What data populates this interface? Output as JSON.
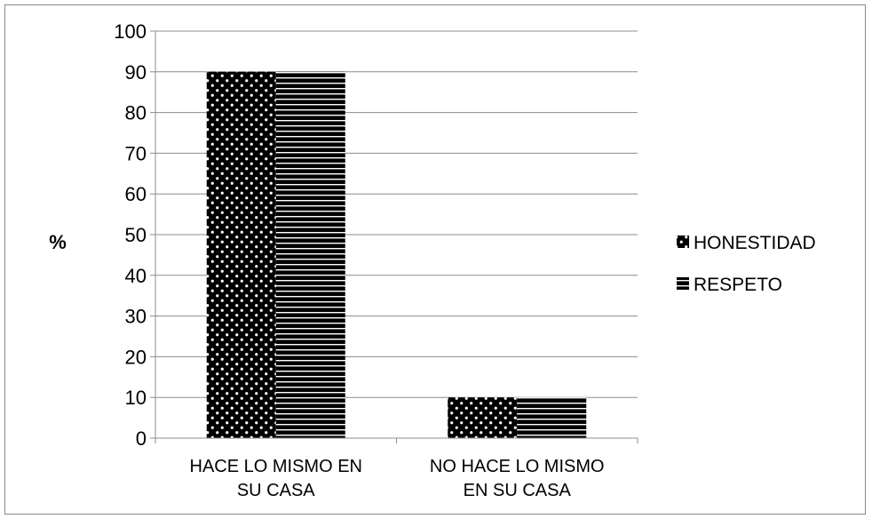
{
  "chart_data": {
    "type": "bar",
    "categories": [
      [
        "HACE LO MISMO EN",
        "SU CASA"
      ],
      [
        "NO HACE LO MISMO",
        "EN SU CASA"
      ]
    ],
    "series": [
      {
        "name": "HONESTIDAD",
        "values": [
          90,
          10
        ],
        "pattern": "dots"
      },
      {
        "name": "RESPETO",
        "values": [
          90,
          10
        ],
        "pattern": "stripes"
      }
    ],
    "ylabel": "%",
    "ylim": [
      0,
      100
    ],
    "yticks": [
      0,
      10,
      20,
      30,
      40,
      50,
      60,
      70,
      80,
      90,
      100
    ],
    "grid": true,
    "legend_position": "right",
    "colors": {
      "bar": "#000000",
      "grid": "#8c8c8c",
      "background": "#ffffff"
    }
  }
}
